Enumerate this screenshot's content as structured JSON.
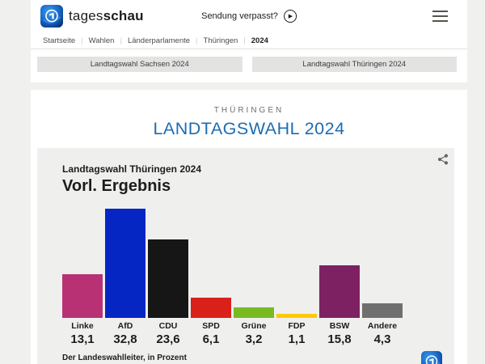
{
  "header": {
    "brand_regular": "tages",
    "brand_bold": "schau",
    "missed_broadcast_label": "Sendung verpasst?"
  },
  "icons": {
    "play": "▶"
  },
  "breadcrumb": {
    "items": [
      "Startseite",
      "Wahlen",
      "Länderparlamente",
      "Thüringen"
    ],
    "current": "2024",
    "separator": "|"
  },
  "nav_buttons": [
    {
      "label": "Landtagswahl Sachsen 2024"
    },
    {
      "label": "Landtagswahl Thüringen 2024"
    }
  ],
  "page": {
    "kicker": "THÜRINGEN",
    "title": "LANDTAGSWAHL 2024",
    "title_color": "#1c6cb2"
  },
  "chart_data": {
    "type": "bar",
    "title": "Vorl. Ergebnis",
    "subtitle": "Landtagswahl Thüringen 2024",
    "source": "Der Landeswahlleiter, in Prozent",
    "unit": "Prozent",
    "categories": [
      "Linke",
      "AfD",
      "CDU",
      "SPD",
      "Grüne",
      "FDP",
      "BSW",
      "Andere"
    ],
    "values": [
      13.1,
      32.8,
      23.6,
      6.1,
      3.2,
      1.1,
      15.8,
      4.3
    ],
    "value_labels": [
      "13,1",
      "32,8",
      "23,6",
      "6,1",
      "3,2",
      "1,1",
      "15,8",
      "4,3"
    ],
    "bar_colors": [
      "#b93175",
      "#0626c3",
      "#161616",
      "#d92119",
      "#77bb21",
      "#fdc900",
      "#7e2163",
      "#6f6f6f"
    ],
    "ylim": [
      0,
      33
    ],
    "grid": false,
    "legend": false
  }
}
